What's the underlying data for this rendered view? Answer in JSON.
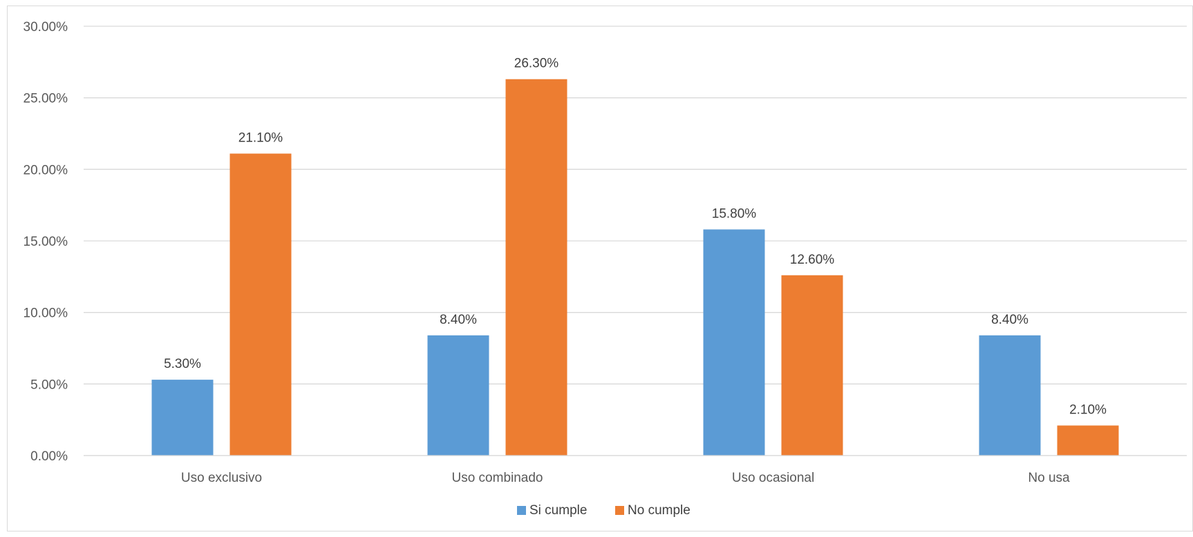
{
  "chart_data": {
    "type": "bar",
    "title": "",
    "xlabel": "",
    "ylabel": "",
    "categories": [
      "Uso exclusivo",
      "Uso combinado",
      "Uso ocasional",
      "No usa"
    ],
    "series": [
      {
        "name": "Si cumple",
        "color": "#5b9bd5",
        "values": [
          5.3,
          8.4,
          15.8,
          8.4
        ],
        "labels": [
          "5.30%",
          "8.40%",
          "15.80%",
          "8.40%"
        ]
      },
      {
        "name": "No cumple",
        "color": "#ed7d31",
        "values": [
          21.1,
          26.3,
          12.6,
          2.1
        ],
        "labels": [
          "21.10%",
          "26.30%",
          "12.60%",
          "2.10%"
        ]
      }
    ],
    "ylim": [
      0,
      30
    ],
    "yticks": [
      0,
      5,
      10,
      15,
      20,
      25,
      30
    ],
    "ytick_labels": [
      "0.00%",
      "5.00%",
      "10.00%",
      "15.00%",
      "20.00%",
      "25.00%",
      "30.00%"
    ],
    "grid": true,
    "legend_position": "bottom-center"
  }
}
